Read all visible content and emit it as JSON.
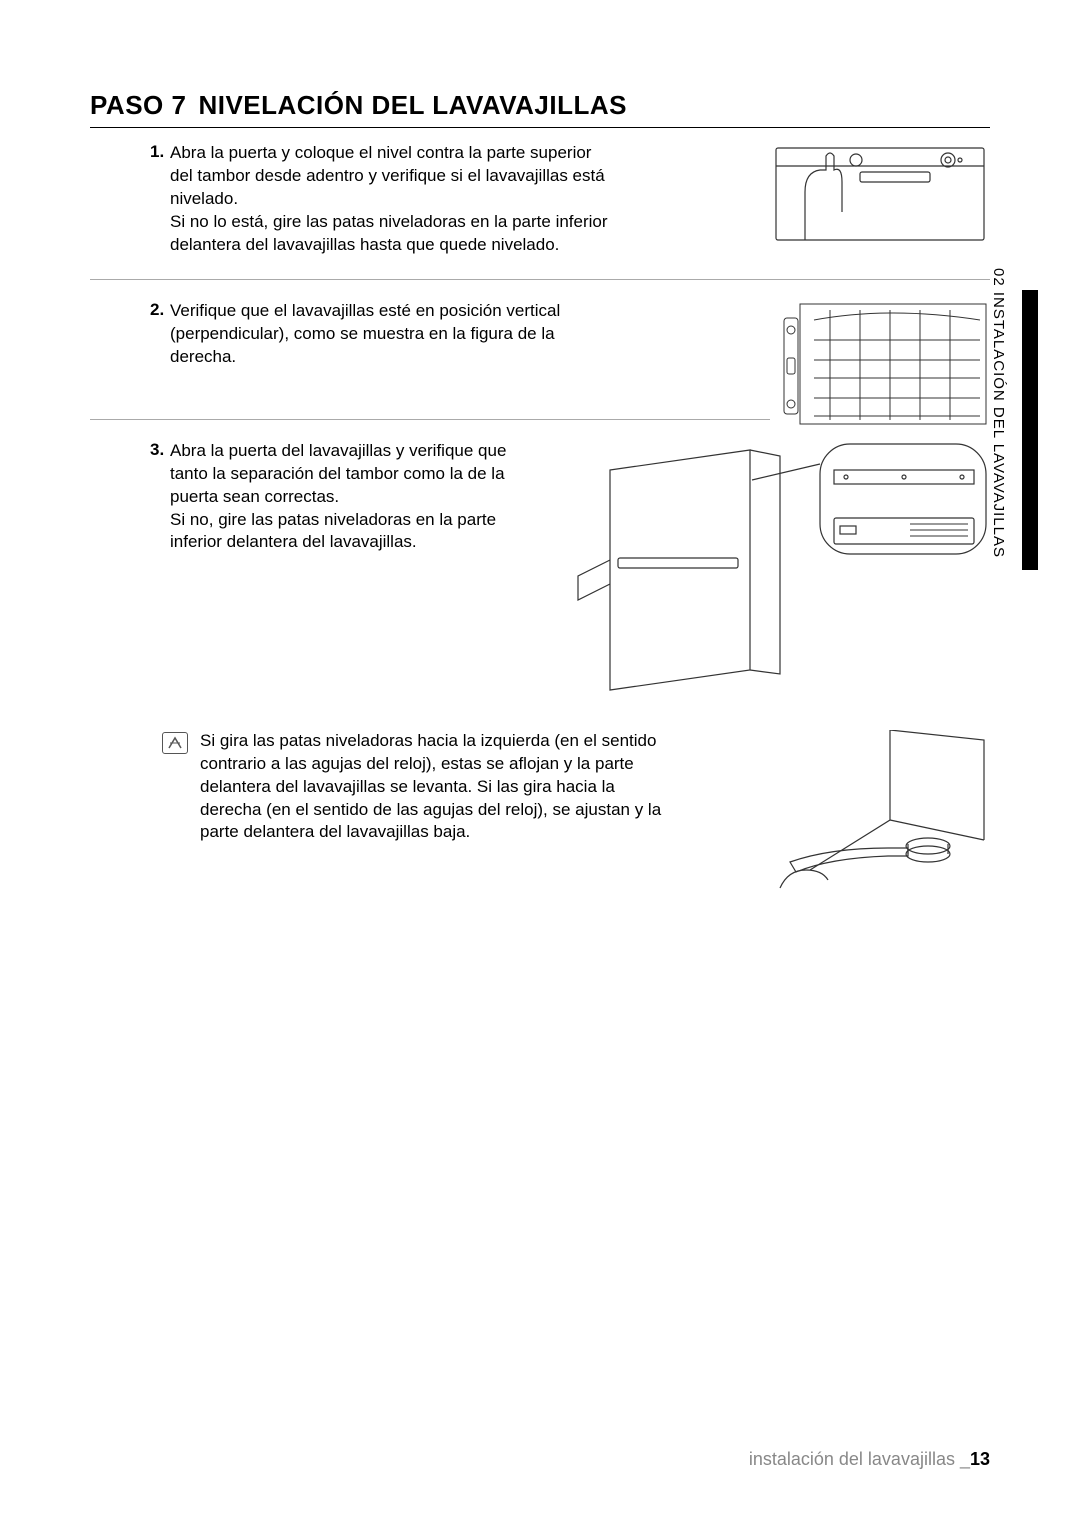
{
  "heading": {
    "prefix": "PASO 7",
    "title": "NIVELACIÓN DEL LAVAVAJILLAS"
  },
  "steps": [
    {
      "num": "1.",
      "text": "Abra la puerta y coloque el nivel contra la parte superior del tambor desde adentro y verifique si el lavavajillas está nivelado.\nSi no lo está, gire las patas niveladoras en la parte inferior delantera del lavavajillas hasta que quede nivelado."
    },
    {
      "num": "2.",
      "text": "Verifique que el lavavajillas esté en posición vertical (perpendicular), como se muestra en la figura de la derecha."
    },
    {
      "num": "3.",
      "text": "Abra la puerta del lavavajillas y verifique que tanto la separación del tambor como la de la puerta sean correctas.\nSi no, gire las patas niveladoras en la parte inferior delantera del lavavajillas."
    }
  ],
  "note": {
    "text": "Si gira las patas niveladoras hacia la izquierda (en el sentido contrario a las agujas del reloj), estas se aflojan y la parte delantera del lavavajillas se levanta. Si las gira hacia la derecha (en el sentido de las agujas del reloj), se ajustan y la parte delantera del lavavajillas baja."
  },
  "sideTab": "02 INSTALACIÓN DEL LAVAVAJILLAS",
  "footer": {
    "label": "instalación del lavavajillas _",
    "page": "13"
  },
  "colors": {
    "text": "#000000",
    "rule": "#aaaaaa",
    "footerGrey": "#888888",
    "illustrationStroke": "#333333"
  },
  "typography": {
    "heading_fontsize": 26,
    "body_fontsize": 17,
    "footer_fontsize": 18,
    "sidetab_fontsize": 15
  }
}
